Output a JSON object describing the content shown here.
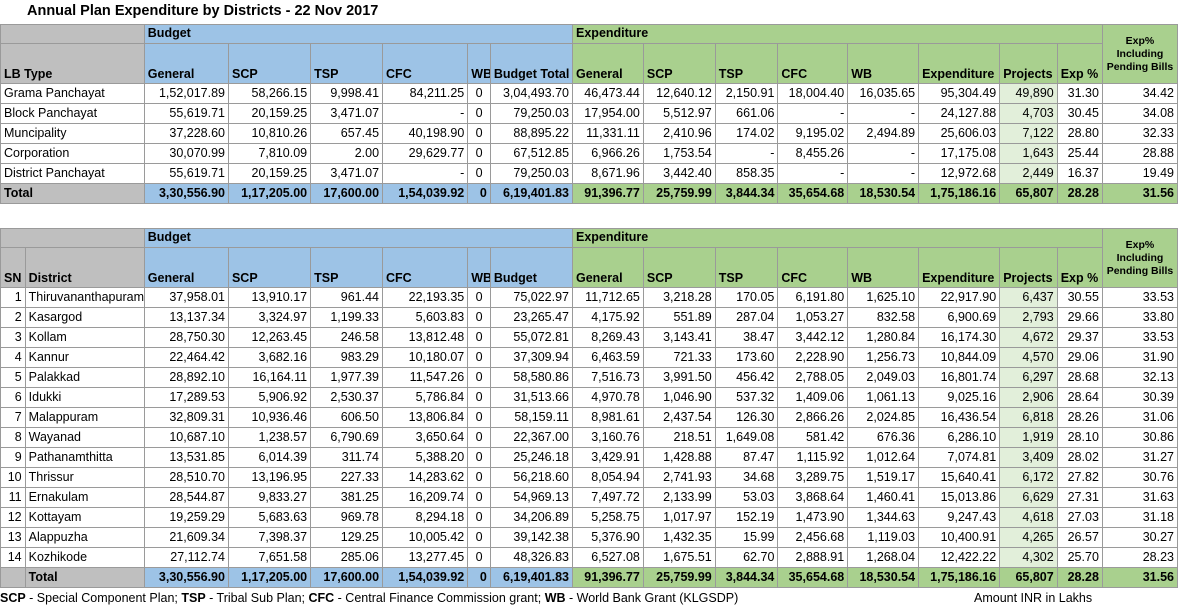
{
  "title": "Annual Plan Expenditure by Districts - 22 Nov 2017",
  "table1": {
    "group_budget": "Budget",
    "group_expenditure": "Expenditure",
    "exp_pct_pending": "Exp% Including Pending Bills",
    "headers": [
      "LB Type",
      "General",
      "SCP",
      "TSP",
      "CFC",
      "WB",
      "Budget Total",
      "General",
      "SCP",
      "TSP",
      "CFC",
      "WB",
      "Expenditure",
      "Projects",
      "Exp %"
    ],
    "rows": [
      [
        "Grama Panchayat",
        "1,52,017.89",
        "58,266.15",
        "9,998.41",
        "84,211.25",
        "0",
        "3,04,493.70",
        "46,473.44",
        "12,640.12",
        "2,150.91",
        "18,004.40",
        "16,035.65",
        "95,304.49",
        "49,890",
        "31.30",
        "34.42"
      ],
      [
        "Block Panchayat",
        "55,619.71",
        "20,159.25",
        "3,471.07",
        "-",
        "0",
        "79,250.03",
        "17,954.00",
        "5,512.97",
        "661.06",
        "-",
        "-",
        "24,127.88",
        "4,703",
        "30.45",
        "34.08"
      ],
      [
        "Muncipality",
        "37,228.60",
        "10,810.26",
        "657.45",
        "40,198.90",
        "0",
        "88,895.22",
        "11,331.11",
        "2,410.96",
        "174.02",
        "9,195.02",
        "2,494.89",
        "25,606.03",
        "7,122",
        "28.80",
        "32.33"
      ],
      [
        "Corporation",
        "30,070.99",
        "7,810.09",
        "2.00",
        "29,629.77",
        "0",
        "67,512.85",
        "6,966.26",
        "1,753.54",
        "-",
        "8,455.26",
        "-",
        "17,175.08",
        "1,643",
        "25.44",
        "28.88"
      ],
      [
        "District Panchayat",
        "55,619.71",
        "20,159.25",
        "3,471.07",
        "-",
        "0",
        "79,250.03",
        "8,671.96",
        "3,442.40",
        "858.35",
        "-",
        "-",
        "12,972.68",
        "2,449",
        "16.37",
        "19.49"
      ]
    ],
    "total": [
      "Total",
      "3,30,556.90",
      "1,17,205.00",
      "17,600.00",
      "1,54,039.92",
      "0",
      "6,19,401.83",
      "91,396.77",
      "25,759.99",
      "3,844.34",
      "35,654.68",
      "18,530.54",
      "1,75,186.16",
      "65,807",
      "28.28",
      "31.56"
    ]
  },
  "table2": {
    "group_budget": "Budget",
    "group_expenditure": "Expenditure",
    "exp_pct_pending": "Exp% Including Pending Bills",
    "headers": [
      "SN",
      "District",
      "General",
      "SCP",
      "TSP",
      "CFC",
      "WB",
      "Budget",
      "General",
      "SCP",
      "TSP",
      "CFC",
      "WB",
      "Expenditure",
      "Projects",
      "Exp %"
    ],
    "rows": [
      [
        "1",
        "Thiruvananthapuram",
        "37,958.01",
        "13,910.17",
        "961.44",
        "22,193.35",
        "0",
        "75,022.97",
        "11,712.65",
        "3,218.28",
        "170.05",
        "6,191.80",
        "1,625.10",
        "22,917.90",
        "6,437",
        "30.55",
        "33.53"
      ],
      [
        "2",
        "Kasargod",
        "13,137.34",
        "3,324.97",
        "1,199.33",
        "5,603.83",
        "0",
        "23,265.47",
        "4,175.92",
        "551.89",
        "287.04",
        "1,053.27",
        "832.58",
        "6,900.69",
        "2,793",
        "29.66",
        "33.80"
      ],
      [
        "3",
        "Kollam",
        "28,750.30",
        "12,263.45",
        "246.58",
        "13,812.48",
        "0",
        "55,072.81",
        "8,269.43",
        "3,143.41",
        "38.47",
        "3,442.12",
        "1,280.84",
        "16,174.30",
        "4,672",
        "29.37",
        "33.53"
      ],
      [
        "4",
        "Kannur",
        "22,464.42",
        "3,682.16",
        "983.29",
        "10,180.07",
        "0",
        "37,309.94",
        "6,463.59",
        "721.33",
        "173.60",
        "2,228.90",
        "1,256.73",
        "10,844.09",
        "4,570",
        "29.06",
        "31.90"
      ],
      [
        "5",
        "Palakkad",
        "28,892.10",
        "16,164.11",
        "1,977.39",
        "11,547.26",
        "0",
        "58,580.86",
        "7,516.73",
        "3,991.50",
        "456.42",
        "2,788.05",
        "2,049.03",
        "16,801.74",
        "6,297",
        "28.68",
        "32.13"
      ],
      [
        "6",
        "Idukki",
        "17,289.53",
        "5,906.92",
        "2,530.37",
        "5,786.84",
        "0",
        "31,513.66",
        "4,970.78",
        "1,046.90",
        "537.32",
        "1,409.06",
        "1,061.13",
        "9,025.16",
        "2,906",
        "28.64",
        "30.39"
      ],
      [
        "7",
        "Malappuram",
        "32,809.31",
        "10,936.46",
        "606.50",
        "13,806.84",
        "0",
        "58,159.11",
        "8,981.61",
        "2,437.54",
        "126.30",
        "2,866.26",
        "2,024.85",
        "16,436.54",
        "6,818",
        "28.26",
        "31.06"
      ],
      [
        "8",
        "Wayanad",
        "10,687.10",
        "1,238.57",
        "6,790.69",
        "3,650.64",
        "0",
        "22,367.00",
        "3,160.76",
        "218.51",
        "1,649.08",
        "581.42",
        "676.36",
        "6,286.10",
        "1,919",
        "28.10",
        "30.86"
      ],
      [
        "9",
        "Pathanamthitta",
        "13,531.85",
        "6,014.39",
        "311.74",
        "5,388.20",
        "0",
        "25,246.18",
        "3,429.91",
        "1,428.88",
        "87.47",
        "1,115.92",
        "1,012.64",
        "7,074.81",
        "3,409",
        "28.02",
        "31.27"
      ],
      [
        "10",
        "Thrissur",
        "28,510.70",
        "13,196.95",
        "227.33",
        "14,283.62",
        "0",
        "56,218.60",
        "8,054.94",
        "2,741.93",
        "34.68",
        "3,289.75",
        "1,519.17",
        "15,640.41",
        "6,172",
        "27.82",
        "30.76"
      ],
      [
        "11",
        "Ernakulam",
        "28,544.87",
        "9,833.27",
        "381.25",
        "16,209.74",
        "0",
        "54,969.13",
        "7,497.72",
        "2,133.99",
        "53.03",
        "3,868.64",
        "1,460.41",
        "15,013.86",
        "6,629",
        "27.31",
        "31.63"
      ],
      [
        "12",
        "Kottayam",
        "19,259.29",
        "5,683.63",
        "969.78",
        "8,294.18",
        "0",
        "34,206.89",
        "5,258.75",
        "1,017.97",
        "152.19",
        "1,473.90",
        "1,344.63",
        "9,247.43",
        "4,618",
        "27.03",
        "31.18"
      ],
      [
        "13",
        "Alappuzha",
        "21,609.34",
        "7,398.37",
        "129.25",
        "10,005.42",
        "0",
        "39,142.38",
        "5,376.90",
        "1,432.35",
        "15.99",
        "2,456.68",
        "1,119.03",
        "10,400.91",
        "4,265",
        "26.57",
        "30.27"
      ],
      [
        "14",
        "Kozhikode",
        "27,112.74",
        "7,651.58",
        "285.06",
        "13,277.45",
        "0",
        "48,326.83",
        "6,527.08",
        "1,675.51",
        "62.70",
        "2,888.91",
        "1,268.04",
        "12,422.22",
        "4,302",
        "25.70",
        "28.23"
      ]
    ],
    "total": [
      "",
      "Total",
      "3,30,556.90",
      "1,17,205.00",
      "17,600.00",
      "1,54,039.92",
      "0",
      "6,19,401.83",
      "91,396.77",
      "25,759.99",
      "3,844.34",
      "35,654.68",
      "18,530.54",
      "1,75,186.16",
      "65,807",
      "28.28",
      "31.56"
    ]
  },
  "footer": {
    "scp_abbr": "SCP",
    "scp_text": " - Special Component Plan; ",
    "tsp_abbr": "TSP",
    "tsp_text": " - Tribal Sub Plan; ",
    "cfc_abbr": "CFC",
    "cfc_text": " - Central Finance Commission grant; ",
    "wb_abbr": "WB",
    "wb_text": " - World Bank Grant (KLGSDP)",
    "amount_note": "Amount INR in Lakhs"
  }
}
